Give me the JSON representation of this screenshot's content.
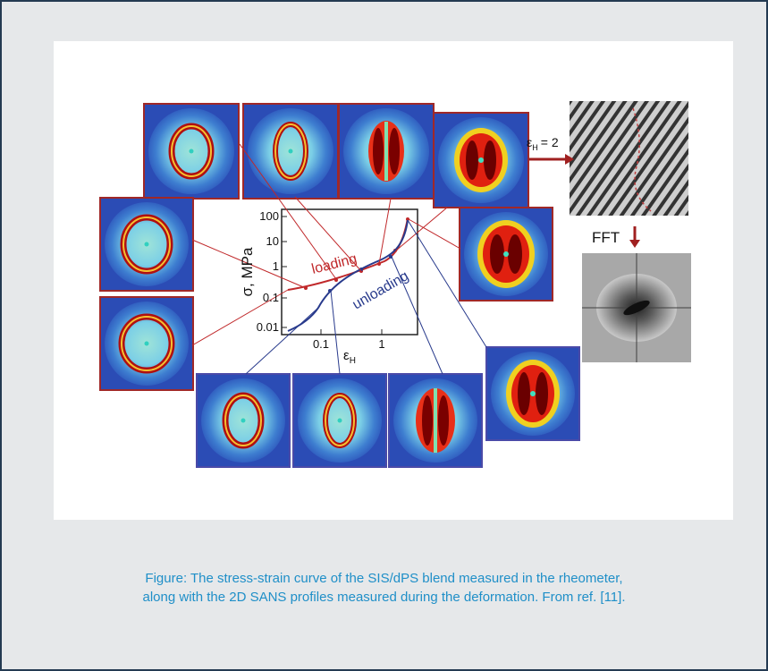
{
  "figure": {
    "axis": {
      "y_label": "σ, MPa",
      "x_label": "ε",
      "x_label_sub": "H",
      "y_ticks": [
        "100",
        "10",
        "1",
        "0.1",
        "0.01"
      ],
      "x_ticks": [
        "0.1",
        "1"
      ]
    },
    "annotations": {
      "loading": "loading",
      "unloading": "unloading",
      "fft": "FFT",
      "strain_eq_prefix": "ε",
      "strain_eq_sub": "H",
      "strain_eq_value": "= 2"
    },
    "colors": {
      "loading": "#c0282a",
      "unloading": "#283a8c",
      "frame_border": "#243a52",
      "caption": "#1f8fc8"
    }
  },
  "caption": {
    "line1": "Figure: The stress-strain curve of the SIS/dPS blend measured in the rheometer,",
    "line2": "along with the 2D SANS profiles measured during the deformation. From ref. [11]."
  }
}
